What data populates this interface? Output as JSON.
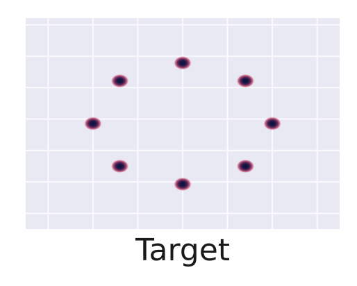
{
  "chart_data": {
    "type": "scatter",
    "title": "",
    "caption": "Target",
    "xlabel": "",
    "ylabel": "",
    "xlim": [
      -3.5,
      3.5
    ],
    "ylim": [
      -2.35,
      2.35
    ],
    "grid": true,
    "x_gridlines": [
      -3.0,
      -2.0,
      -1.0,
      0.0,
      1.0,
      2.0,
      3.0
    ],
    "y_gridlines": [
      -2.0,
      -1.3,
      -0.6,
      0.1,
      0.8,
      1.5,
      2.2
    ],
    "series": [
      {
        "points": [
          {
            "x": 0.0,
            "y": 1.35
          },
          {
            "x": 1.4,
            "y": 0.95
          },
          {
            "x": 2.0,
            "y": 0.0
          },
          {
            "x": 1.4,
            "y": -0.95
          },
          {
            "x": 0.0,
            "y": -1.35
          },
          {
            "x": -1.4,
            "y": -0.95
          },
          {
            "x": -2.0,
            "y": 0.0
          },
          {
            "x": -1.4,
            "y": 0.95
          }
        ]
      }
    ],
    "colors": {
      "background": "#e9e9f3",
      "grid": "#fafafe",
      "point_core": "#1a1745",
      "point_halo": "#c7587a"
    }
  }
}
